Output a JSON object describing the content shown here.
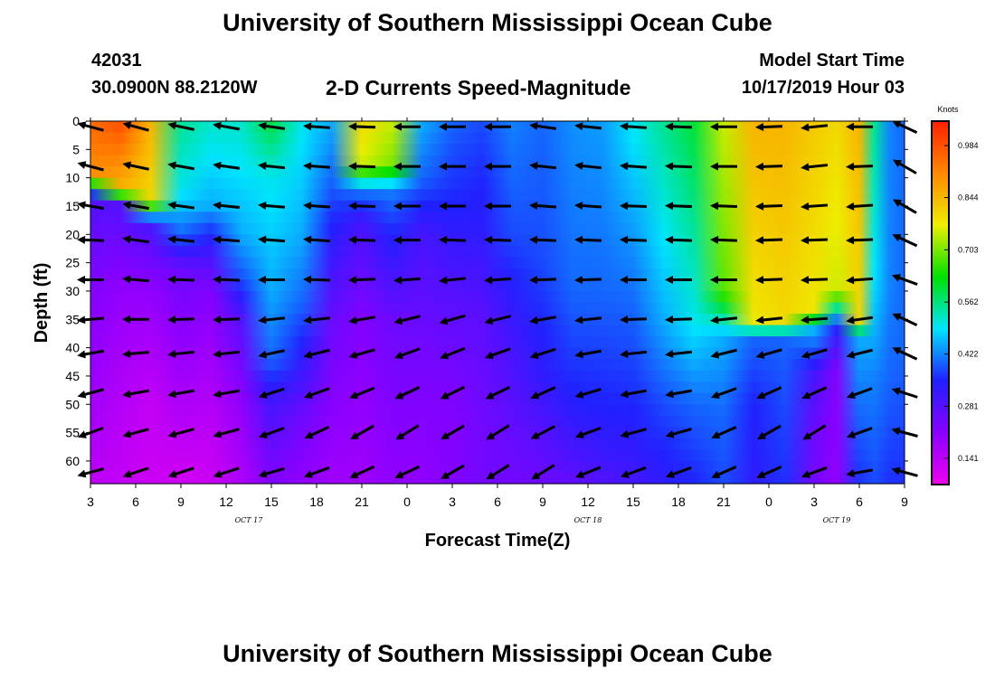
{
  "page": {
    "title_top": "University of Southern Mississippi Ocean Cube",
    "title_bottom": "University of Southern Mississippi Ocean Cube",
    "station_id": "42031",
    "station_coords": "30.0900N 88.2120W",
    "subtitle": "2-D Currents Speed-Magnitude",
    "model_start_label": "Model Start Time",
    "model_start_value": "10/17/2019 Hour 03"
  },
  "chart_data": {
    "type": "heatmap",
    "title": "2-D Currents Speed-Magnitude",
    "xlabel": "Forecast Time(Z)",
    "ylabel": "Depth (ft)",
    "x_range_hours": [
      0,
      54
    ],
    "x_tick_labels": [
      "3",
      "6",
      "9",
      "12",
      "15",
      "18",
      "21",
      "0",
      "3",
      "6",
      "9",
      "12",
      "15",
      "18",
      "21",
      "0",
      "3",
      "6",
      "9"
    ],
    "date_labels": [
      {
        "text": "OCT 17",
        "hour": 10.5
      },
      {
        "text": "OCT 18",
        "hour": 33
      },
      {
        "text": "OCT 19",
        "hour": 49.5
      }
    ],
    "ylim": [
      0,
      64
    ],
    "y_ticks": [
      0,
      5,
      10,
      15,
      20,
      25,
      30,
      35,
      40,
      45,
      50,
      55,
      60
    ],
    "colorbar": {
      "unit": "Knots",
      "min": 0.07,
      "max": 1.05,
      "tick_labels": [
        "0.984",
        "0.844",
        "0.703",
        "0.562",
        "0.422",
        "0.281",
        "0.141"
      ],
      "tick_values": [
        0.984,
        0.844,
        0.703,
        0.562,
        0.422,
        0.281,
        0.141
      ],
      "colors": [
        "#ee00ee",
        "#8a00ff",
        "#2020ff",
        "#00e5ff",
        "#00e000",
        "#eeee00",
        "#ff8800",
        "#ff2000"
      ]
    },
    "speed_profiles_knots": [
      {
        "hour": 0,
        "profile": [
          [
            0,
            0.95
          ],
          [
            10,
            0.9
          ],
          [
            12,
            0.4
          ],
          [
            15,
            0.28
          ],
          [
            30,
            0.22
          ],
          [
            50,
            0.18
          ],
          [
            64,
            0.14
          ]
        ]
      },
      {
        "hour": 2,
        "profile": [
          [
            0,
            0.99
          ],
          [
            12,
            0.85
          ],
          [
            15,
            0.28
          ],
          [
            30,
            0.2
          ],
          [
            50,
            0.15
          ],
          [
            64,
            0.13
          ]
        ]
      },
      {
        "hour": 4,
        "profile": [
          [
            0,
            0.85
          ],
          [
            14,
            0.8
          ],
          [
            18,
            0.3
          ],
          [
            30,
            0.2
          ],
          [
            50,
            0.13
          ],
          [
            64,
            0.12
          ]
        ]
      },
      {
        "hour": 6,
        "profile": [
          [
            0,
            0.55
          ],
          [
            12,
            0.5
          ],
          [
            20,
            0.4
          ],
          [
            26,
            0.25
          ],
          [
            45,
            0.18
          ],
          [
            64,
            0.11
          ]
        ]
      },
      {
        "hour": 8,
        "profile": [
          [
            0,
            0.52
          ],
          [
            15,
            0.45
          ],
          [
            20,
            0.35
          ],
          [
            30,
            0.22
          ],
          [
            50,
            0.15
          ],
          [
            64,
            0.12
          ]
        ]
      },
      {
        "hour": 10,
        "profile": [
          [
            0,
            0.52
          ],
          [
            20,
            0.45
          ],
          [
            28,
            0.38
          ],
          [
            35,
            0.28
          ],
          [
            50,
            0.2
          ],
          [
            64,
            0.16
          ]
        ]
      },
      {
        "hour": 12,
        "profile": [
          [
            0,
            0.6
          ],
          [
            10,
            0.5
          ],
          [
            30,
            0.45
          ],
          [
            42,
            0.4
          ],
          [
            50,
            0.3
          ],
          [
            64,
            0.22
          ]
        ]
      },
      {
        "hour": 14,
        "profile": [
          [
            0,
            0.5
          ],
          [
            20,
            0.45
          ],
          [
            32,
            0.4
          ],
          [
            44,
            0.32
          ],
          [
            52,
            0.25
          ],
          [
            64,
            0.2
          ]
        ]
      },
      {
        "hour": 16,
        "profile": [
          [
            0,
            0.45
          ],
          [
            10,
            0.4
          ],
          [
            22,
            0.33
          ],
          [
            36,
            0.25
          ],
          [
            55,
            0.2
          ],
          [
            64,
            0.18
          ]
        ]
      },
      {
        "hour": 18,
        "profile": [
          [
            0,
            0.8
          ],
          [
            8,
            0.75
          ],
          [
            12,
            0.42
          ],
          [
            18,
            0.3
          ],
          [
            35,
            0.22
          ],
          [
            64,
            0.18
          ]
        ]
      },
      {
        "hour": 20,
        "profile": [
          [
            0,
            0.75
          ],
          [
            8,
            0.7
          ],
          [
            12,
            0.42
          ],
          [
            20,
            0.35
          ],
          [
            35,
            0.25
          ],
          [
            64,
            0.2
          ]
        ]
      },
      {
        "hour": 22,
        "profile": [
          [
            0,
            0.45
          ],
          [
            10,
            0.4
          ],
          [
            20,
            0.3
          ],
          [
            40,
            0.24
          ],
          [
            64,
            0.2
          ]
        ]
      },
      {
        "hour": 24,
        "profile": [
          [
            0,
            0.4
          ],
          [
            15,
            0.35
          ],
          [
            30,
            0.28
          ],
          [
            50,
            0.22
          ],
          [
            64,
            0.22
          ]
        ]
      },
      {
        "hour": 26,
        "profile": [
          [
            0,
            0.38
          ],
          [
            20,
            0.33
          ],
          [
            35,
            0.27
          ],
          [
            55,
            0.24
          ],
          [
            64,
            0.24
          ]
        ]
      },
      {
        "hour": 28,
        "profile": [
          [
            0,
            0.42
          ],
          [
            20,
            0.38
          ],
          [
            40,
            0.3
          ],
          [
            55,
            0.26
          ],
          [
            64,
            0.24
          ]
        ]
      },
      {
        "hour": 30,
        "profile": [
          [
            0,
            0.4
          ],
          [
            25,
            0.38
          ],
          [
            45,
            0.33
          ],
          [
            55,
            0.28
          ],
          [
            64,
            0.25
          ]
        ]
      },
      {
        "hour": 32,
        "profile": [
          [
            0,
            0.43
          ],
          [
            30,
            0.4
          ],
          [
            48,
            0.35
          ],
          [
            58,
            0.3
          ],
          [
            64,
            0.26
          ]
        ]
      },
      {
        "hour": 34,
        "profile": [
          [
            0,
            0.44
          ],
          [
            30,
            0.4
          ],
          [
            50,
            0.35
          ],
          [
            60,
            0.31
          ],
          [
            64,
            0.28
          ]
        ]
      },
      {
        "hour": 36,
        "profile": [
          [
            0,
            0.5
          ],
          [
            25,
            0.42
          ],
          [
            48,
            0.36
          ],
          [
            60,
            0.32
          ],
          [
            64,
            0.3
          ]
        ]
      },
      {
        "hour": 38,
        "profile": [
          [
            0,
            0.55
          ],
          [
            35,
            0.45
          ],
          [
            50,
            0.38
          ],
          [
            64,
            0.33
          ]
        ]
      },
      {
        "hour": 40,
        "profile": [
          [
            0,
            0.6
          ],
          [
            35,
            0.5
          ],
          [
            50,
            0.4
          ],
          [
            64,
            0.35
          ]
        ]
      },
      {
        "hour": 42,
        "profile": [
          [
            0,
            0.75
          ],
          [
            30,
            0.68
          ],
          [
            38,
            0.45
          ],
          [
            52,
            0.4
          ],
          [
            64,
            0.38
          ]
        ]
      },
      {
        "hour": 44,
        "profile": [
          [
            0,
            0.85
          ],
          [
            35,
            0.78
          ],
          [
            38,
            0.4
          ],
          [
            50,
            0.35
          ],
          [
            64,
            0.33
          ]
        ]
      },
      {
        "hour": 46,
        "profile": [
          [
            0,
            0.85
          ],
          [
            35,
            0.8
          ],
          [
            38,
            0.4
          ],
          [
            50,
            0.38
          ],
          [
            64,
            0.36
          ]
        ]
      },
      {
        "hour": 48,
        "profile": [
          [
            0,
            0.82
          ],
          [
            33,
            0.78
          ],
          [
            37,
            0.45
          ],
          [
            45,
            0.3
          ],
          [
            55,
            0.25
          ],
          [
            64,
            0.24
          ]
        ]
      },
      {
        "hour": 49.5,
        "profile": [
          [
            0,
            0.8
          ],
          [
            30,
            0.75
          ],
          [
            36,
            0.35
          ],
          [
            44,
            0.22
          ],
          [
            64,
            0.2
          ]
        ]
      },
      {
        "hour": 51,
        "profile": [
          [
            0,
            0.85
          ],
          [
            35,
            0.8
          ],
          [
            38,
            0.45
          ],
          [
            52,
            0.4
          ],
          [
            64,
            0.36
          ]
        ]
      },
      {
        "hour": 52,
        "profile": [
          [
            0,
            0.55
          ],
          [
            30,
            0.48
          ],
          [
            45,
            0.42
          ],
          [
            64,
            0.38
          ]
        ]
      },
      {
        "hour": 53,
        "profile": [
          [
            0,
            0.42
          ],
          [
            30,
            0.42
          ],
          [
            45,
            0.4
          ],
          [
            64,
            0.36
          ]
        ]
      },
      {
        "hour": 54,
        "profile": [
          [
            0,
            0.4
          ],
          [
            40,
            0.4
          ],
          [
            64,
            0.36
          ]
        ]
      }
    ],
    "vector_columns_hours": [
      0,
      3,
      6,
      9,
      12,
      15,
      18,
      21,
      24,
      27,
      30,
      33,
      36,
      39,
      42,
      45,
      48,
      51,
      54
    ],
    "vector_rows_depth_ft": [
      1,
      8,
      15,
      21,
      28,
      35,
      41,
      48,
      55,
      62
    ],
    "vector_direction_deg": {
      "0": [
        165,
        165,
        170,
        178,
        180,
        185,
        190,
        195,
        200,
        195
      ],
      "3": [
        165,
        168,
        170,
        172,
        175,
        180,
        185,
        190,
        195,
        198
      ],
      "6": [
        168,
        170,
        172,
        174,
        178,
        182,
        186,
        190,
        195,
        198
      ],
      "9": [
        170,
        172,
        174,
        176,
        178,
        182,
        186,
        190,
        195,
        198
      ],
      "12": [
        172,
        174,
        175,
        176,
        180,
        186,
        192,
        198,
        200,
        196
      ],
      "15": [
        176,
        176,
        176,
        176,
        178,
        186,
        194,
        200,
        205,
        200
      ],
      "18": [
        178,
        178,
        178,
        178,
        182,
        190,
        196,
        202,
        210,
        205
      ],
      "21": [
        180,
        180,
        180,
        180,
        184,
        194,
        200,
        205,
        212,
        205
      ],
      "24": [
        180,
        180,
        180,
        178,
        186,
        196,
        202,
        206,
        210,
        210
      ],
      "27": [
        180,
        180,
        180,
        178,
        184,
        194,
        200,
        206,
        212,
        212
      ],
      "30": [
        172,
        174,
        176,
        178,
        182,
        190,
        198,
        204,
        208,
        212
      ],
      "33": [
        174,
        174,
        176,
        178,
        182,
        186,
        190,
        196,
        200,
        202
      ],
      "36": [
        176,
        176,
        178,
        178,
        180,
        182,
        186,
        190,
        195,
        200
      ],
      "39": [
        178,
        178,
        178,
        178,
        180,
        182,
        186,
        190,
        196,
        200
      ],
      "42": [
        180,
        180,
        178,
        178,
        180,
        186,
        194,
        200,
        204,
        204
      ],
      "45": [
        182,
        182,
        182,
        182,
        182,
        186,
        196,
        204,
        210,
        204
      ],
      "48": [
        186,
        186,
        184,
        182,
        182,
        184,
        196,
        204,
        212,
        200
      ],
      "51": [
        180,
        182,
        184,
        182,
        184,
        188,
        194,
        200,
        200,
        190
      ],
      "54": [
        155,
        150,
        150,
        155,
        160,
        155,
        155,
        162,
        165,
        165
      ]
    }
  }
}
